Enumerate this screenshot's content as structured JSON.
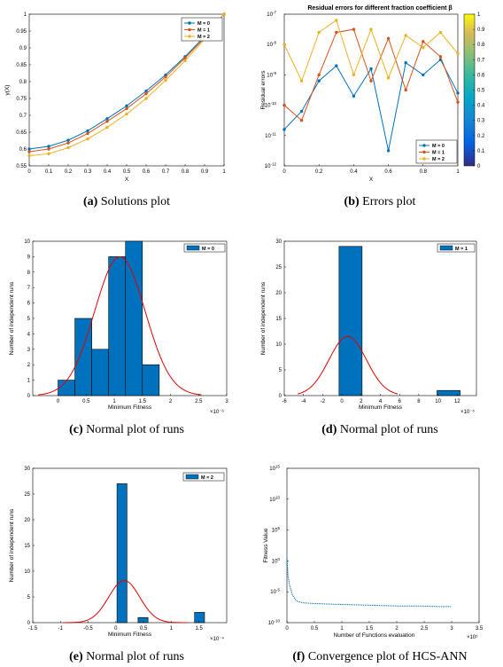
{
  "chart_data": [
    {
      "id": "a",
      "type": "line",
      "caption_id": "(a)",
      "caption_text": "Solutions plot",
      "xlabel": "X",
      "ylabel": "y(X)",
      "xlim": [
        0,
        1
      ],
      "ylim": [
        0.55,
        1.0
      ],
      "xticks": [
        "0",
        "0.1",
        "0.2",
        "0.3",
        "0.4",
        "0.5",
        "0.6",
        "0.7",
        "0.8",
        "0.9",
        "1"
      ],
      "yticks": [
        "0.55",
        "0.6",
        "0.65",
        "0.7",
        "0.75",
        "0.8",
        "0.85",
        "0.9",
        "0.95",
        "1"
      ],
      "legend_position": "top-left",
      "x": [
        0,
        0.1,
        0.2,
        0.3,
        0.4,
        0.5,
        0.6,
        0.7,
        0.8,
        0.9,
        1
      ],
      "series": [
        {
          "name": "M = 0",
          "color": "#0072BD",
          "values": [
            0.6,
            0.608,
            0.626,
            0.654,
            0.69,
            0.728,
            0.772,
            0.82,
            0.874,
            0.934,
            1.0
          ]
        },
        {
          "name": "M = 1",
          "color": "#D95319",
          "values": [
            0.592,
            0.6,
            0.618,
            0.646,
            0.682,
            0.72,
            0.764,
            0.814,
            0.87,
            0.93,
            1.0
          ]
        },
        {
          "name": "M = 2",
          "color": "#EDB120",
          "values": [
            0.58,
            0.586,
            0.604,
            0.63,
            0.664,
            0.704,
            0.75,
            0.804,
            0.862,
            0.926,
            1.0
          ]
        }
      ]
    },
    {
      "id": "b",
      "type": "line",
      "yscale": "log",
      "caption_id": "(b)",
      "caption_text": "Errors plot",
      "title": "Residual errors for different fraction coefficient β",
      "xlabel": "X",
      "ylabel": "Residual errors",
      "xlim": [
        0,
        1
      ],
      "ylim_exp": [
        -12,
        -7
      ],
      "xticks": [
        "0",
        "0.2",
        "0.4",
        "0.6",
        "0.8",
        "1"
      ],
      "yticks_exp": [
        "10",
        "10",
        "10",
        "10",
        "10",
        "10"
      ],
      "yticks_sup": [
        "-12",
        "-11",
        "-10",
        "-9",
        "-8",
        "-7"
      ],
      "colorbar_ticks": [
        "0",
        "0.1",
        "0.2",
        "0.3",
        "0.4",
        "0.5",
        "0.6",
        "0.7",
        "0.8",
        "0.9",
        "1"
      ],
      "legend_position": "bottom-right",
      "x": [
        0,
        0.1,
        0.2,
        0.3,
        0.4,
        0.5,
        0.6,
        0.7,
        0.8,
        0.9,
        1
      ],
      "series": [
        {
          "name": "M = 0",
          "color": "#0072BD",
          "log10": [
            -10.8,
            -10.2,
            -9.2,
            -8.7,
            -9.7,
            -8.8,
            -11.5,
            -8.6,
            -9.0,
            -8.5,
            -9.6
          ]
        },
        {
          "name": "M = 1",
          "color": "#D95319",
          "log10": [
            -10.0,
            -10.5,
            -9.0,
            -7.6,
            -7.5,
            -9.2,
            -7.8,
            -9.5,
            -7.9,
            -8.4,
            -9.9
          ]
        },
        {
          "name": "M = 2",
          "color": "#EDB120",
          "log10": [
            -8.0,
            -9.2,
            -7.6,
            -7.2,
            -9.0,
            -7.5,
            -9.1,
            -7.7,
            -8.1,
            -7.6,
            -8.3
          ]
        }
      ]
    },
    {
      "id": "c",
      "type": "bar",
      "caption_id": "(c)",
      "caption_text": "Normal plot of runs",
      "xlabel": "Minimum Fitness",
      "ylabel": "Number of independent runs",
      "x_exponent": "×10⁻⁶",
      "xlim": [
        -0.45,
        3
      ],
      "ylim": [
        0,
        10
      ],
      "xticks_vals": [
        0,
        0.5,
        1,
        1.5,
        2,
        2.5,
        3
      ],
      "xticks": [
        "0",
        "0.5",
        "1",
        "1.5",
        "2",
        "2.5",
        "3"
      ],
      "yticks_vals": [
        0,
        1,
        2,
        3,
        4,
        5,
        6,
        7,
        8,
        9,
        10
      ],
      "yticks": [
        "0",
        "1",
        "2",
        "3",
        "4",
        "5",
        "6",
        "7",
        "8",
        "9",
        "10"
      ],
      "legend": "M = 0",
      "legend_position": "top-right",
      "bins": [
        [
          0,
          0.3,
          1
        ],
        [
          0.3,
          0.6,
          5
        ],
        [
          0.6,
          0.9,
          3
        ],
        [
          0.9,
          1.2,
          9
        ],
        [
          1.2,
          1.5,
          10
        ],
        [
          1.5,
          1.8,
          2
        ]
      ],
      "curve": {
        "mu": 1.1,
        "sigma": 0.45,
        "peak": 9.0,
        "range": [
          -0.35,
          2.55
        ]
      }
    },
    {
      "id": "d",
      "type": "bar",
      "caption_id": "(d)",
      "caption_text": "Normal plot of runs",
      "xlabel": "Minimum Fitness",
      "ylabel": "Number of independent runs",
      "x_exponent": "×10⁻⁵",
      "xlim": [
        -6,
        14
      ],
      "ylim": [
        0,
        30
      ],
      "xticks_vals": [
        -6,
        -4,
        -2,
        0,
        2,
        4,
        6,
        8,
        10,
        12
      ],
      "xticks": [
        "-6",
        "-4",
        "-2",
        "0",
        "2",
        "4",
        "6",
        "8",
        "10",
        "12"
      ],
      "yticks_vals": [
        0,
        5,
        10,
        15,
        20,
        25,
        30
      ],
      "yticks": [
        "0",
        "5",
        "10",
        "15",
        "20",
        "25",
        "30"
      ],
      "legend": "M = 1",
      "legend_position": "top-right",
      "bins": [
        [
          -0.3,
          2.1,
          29
        ],
        [
          9.9,
          12.3,
          1
        ]
      ],
      "curve": {
        "mu": 0.6,
        "sigma": 1.95,
        "peak": 11.5,
        "range": [
          -4.6,
          5.8
        ]
      }
    },
    {
      "id": "e",
      "type": "bar",
      "caption_id": "(e)",
      "caption_text": "Normal plot of runs",
      "xlabel": "Minimum Fitness",
      "ylabel": "Number of independent runs",
      "x_exponent": "×10⁻⁴",
      "xlim": [
        -1.5,
        2
      ],
      "ylim": [
        0,
        30
      ],
      "xticks_vals": [
        -1.5,
        -1,
        -0.5,
        0,
        0.5,
        1,
        1.5
      ],
      "xticks": [
        "-1.5",
        "-1",
        "-0.5",
        "0",
        "0.5",
        "1",
        "1.5"
      ],
      "yticks_vals": [
        0,
        5,
        10,
        15,
        20,
        25,
        30
      ],
      "yticks": [
        "0",
        "5",
        "10",
        "15",
        "20",
        "25",
        "30"
      ],
      "legend": "M = 2",
      "legend_position": "top-right",
      "bins": [
        [
          0.02,
          0.2,
          27
        ],
        [
          0.4,
          0.58,
          1
        ],
        [
          1.42,
          1.6,
          2
        ]
      ],
      "curve": {
        "mu": 0.15,
        "sigma": 0.28,
        "peak": 8.2,
        "range": [
          -0.95,
          1.3
        ]
      }
    },
    {
      "id": "f",
      "type": "line",
      "yscale": "log",
      "caption_id": "(f)",
      "caption_text": "Convergence plot of HCS-ANN",
      "xlabel": "Number of Functions evaluation",
      "ylabel": "Fitness Value",
      "x_exponent": "×10⁵",
      "xlim": [
        0,
        3.5
      ],
      "ylim_exp": [
        -10,
        15
      ],
      "xticks_vals": [
        0,
        0.5,
        1,
        1.5,
        2,
        2.5,
        3,
        3.5
      ],
      "xticks": [
        "0",
        "0.5",
        "1",
        "1.5",
        "2",
        "2.5",
        "3",
        "3.5"
      ],
      "yticks_vals": [
        -10,
        -5,
        0,
        5,
        10,
        15
      ],
      "yticks_base": "10",
      "yticks_sup": [
        "-10",
        "-5",
        "0",
        "5",
        "10",
        "15"
      ],
      "line_color": "#0072BD",
      "x": [
        0,
        0.02,
        0.05,
        0.1,
        0.15,
        0.2,
        0.3,
        0.5,
        0.8,
        1.2,
        1.6,
        2.0,
        2.4,
        2.8,
        3.0
      ],
      "log10": [
        0.5,
        -2.5,
        -4.0,
        -5.5,
        -6.2,
        -6.6,
        -6.8,
        -6.9,
        -7.0,
        -7.1,
        -7.2,
        -7.3,
        -7.3,
        -7.4,
        -7.4
      ]
    }
  ]
}
